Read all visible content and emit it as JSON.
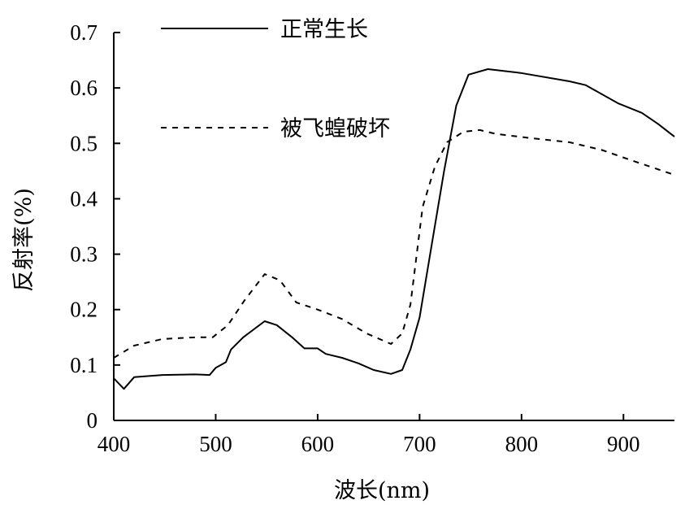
{
  "chart_data": {
    "type": "line",
    "title": "",
    "xlabel": "波长(nm)",
    "ylabel": "反射率(%)",
    "xlim": [
      400,
      950
    ],
    "ylim": [
      0,
      0.7
    ],
    "xticks": [
      "400",
      "500",
      "600",
      "700",
      "800",
      "900"
    ],
    "yticks": [
      "0",
      "0.1",
      "0.2",
      "0.3",
      "0.4",
      "0.5",
      "0.6",
      "0.7"
    ],
    "grid": false,
    "legend_position": "top-left",
    "series": [
      {
        "name": "正常生长",
        "style": "solid",
        "x": [
          400,
          410,
          420,
          448,
          480,
          494,
          500,
          510,
          515,
          527,
          548,
          560,
          575,
          587,
          600,
          608,
          624,
          640,
          655,
          672,
          683,
          691,
          700,
          712,
          724,
          736,
          748,
          767,
          799,
          847,
          863,
          895,
          918,
          934,
          950
        ],
        "y": [
          0.076,
          0.057,
          0.078,
          0.082,
          0.083,
          0.082,
          0.095,
          0.105,
          0.128,
          0.15,
          0.179,
          0.172,
          0.15,
          0.13,
          0.13,
          0.12,
          0.113,
          0.103,
          0.091,
          0.084,
          0.091,
          0.128,
          0.186,
          0.318,
          0.45,
          0.568,
          0.624,
          0.634,
          0.627,
          0.612,
          0.605,
          0.572,
          0.555,
          0.535,
          0.512
        ]
      },
      {
        "name": "被飞蝗破坏",
        "style": "dashed",
        "x": [
          400,
          420,
          448,
          480,
          497,
          512,
          528,
          548,
          563,
          579,
          600,
          624,
          648,
          672,
          683,
          691,
          703,
          715,
          727,
          743,
          759,
          775,
          807,
          847,
          879,
          910,
          950
        ],
        "y": [
          0.113,
          0.135,
          0.147,
          0.15,
          0.15,
          0.172,
          0.216,
          0.264,
          0.253,
          0.213,
          0.2,
          0.183,
          0.157,
          0.138,
          0.157,
          0.209,
          0.385,
          0.458,
          0.502,
          0.521,
          0.524,
          0.517,
          0.51,
          0.502,
          0.488,
          0.468,
          0.443
        ]
      }
    ]
  }
}
